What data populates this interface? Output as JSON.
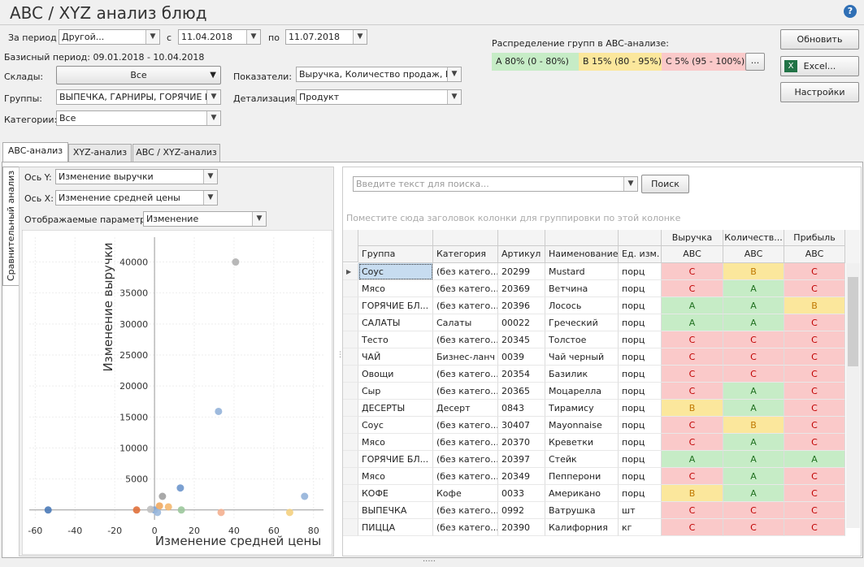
{
  "title": "ABC / XYZ анализ блюд",
  "filters": {
    "period_label": "За период",
    "period": "Другой...",
    "from_label": "с",
    "from": "11.04.2018",
    "to_label": "по",
    "to": "11.07.2018",
    "base_period": "Базисный период: 09.01.2018 - 10.04.2018",
    "warehouses_label": "Склады:",
    "warehouses": "Все",
    "groups_label": "Группы:",
    "groups": "ВЫПЕЧКА, ГАРНИРЫ, ГОРЯЧИЕ Б...",
    "categories_label": "Категории:",
    "categories": "Все",
    "indicators_label": "Показатели:",
    "indicators": "Выручка, Количество продаж, П...",
    "detail_label": "Детализация:",
    "detail": "Продукт"
  },
  "distribution": {
    "label": "Распределение групп в ABC-анализе:",
    "a": "A 80% (0 - 80%)",
    "b": "B 15% (80 - 95%)",
    "c": "C 5% (95 - 100%)",
    "more": "..."
  },
  "buttons": {
    "refresh": "Обновить",
    "excel": "Excel...",
    "settings": "Настройки"
  },
  "tabs": [
    "ABC-анализ",
    "XYZ-анализ",
    "ABC / XYZ-анализ"
  ],
  "side_tab": "Сравнительный анализ",
  "chart_settings": {
    "y_label": "Ось Y:",
    "y": "Изменение выручки",
    "x_label": "Ось X:",
    "x": "Изменение средней цены",
    "params_label": "Отображаемые параметры:",
    "params": "Изменение"
  },
  "chart": {
    "type": "scatter",
    "x_label": "Изменение средней цены",
    "y_label": "Изменение выручки",
    "x": [
      40.8,
      32.2,
      13,
      4,
      75.5,
      -53.5,
      -9,
      0,
      2.5,
      7,
      13.5,
      33.5,
      68,
      1.5,
      -2
    ],
    "y": [
      40000,
      15900,
      3550,
      2200,
      2200,
      0,
      0,
      0,
      650,
      500,
      0,
      -400,
      -400,
      -400,
      100
    ],
    "colors": [
      "#b0b0b0",
      "#93b3d9",
      "#6d96cc",
      "#a0a0a0",
      "#93b3d9",
      "#4a7ab8",
      "#e0703a",
      "#7da4d4",
      "#f0a860",
      "#f4b870",
      "#9cc89c",
      "#f4b090",
      "#f4d080",
      "#9ab8dc",
      "#c0c0c0"
    ],
    "xlim": [
      -63,
      85
    ],
    "ylim": [
      -1600,
      44000
    ],
    "xticks": [
      -60,
      -40,
      -20,
      0,
      20,
      40,
      60,
      80
    ],
    "yticks": [
      5000,
      10000,
      15000,
      20000,
      25000,
      30000,
      35000,
      40000
    ]
  },
  "search": {
    "placeholder": "Введите текст для поиска...",
    "button": "Поиск",
    "group_hint": "Поместите сюда заголовок колонки для группировки по этой колонке"
  },
  "table": {
    "group_headers": [
      "Выручка",
      "Количеств...",
      "Прибыль"
    ],
    "columns": [
      "Группа",
      "Категория",
      "Артикул",
      "Наименование",
      "Ед. изм.",
      "ABC",
      "ABC",
      "ABC"
    ],
    "rows": [
      [
        "Соус",
        "(без катего...",
        "20299",
        "Mustard",
        "порц",
        "C",
        "B",
        "C"
      ],
      [
        "Мясо",
        "(без катего...",
        "20369",
        "Ветчина",
        "порц",
        "C",
        "A",
        "C"
      ],
      [
        "ГОРЯЧИЕ БЛ...",
        "(без катего...",
        "20396",
        "Лосось",
        "порц",
        "A",
        "A",
        "B"
      ],
      [
        "САЛАТЫ",
        "Салаты",
        "00022",
        "Греческий",
        "порц",
        "A",
        "A",
        "C"
      ],
      [
        "Тесто",
        "(без катего...",
        "20345",
        "Толстое",
        "порц",
        "C",
        "C",
        "C"
      ],
      [
        "ЧАЙ",
        "Бизнес-ланч",
        "0039",
        "Чай черный",
        "порц",
        "C",
        "C",
        "C"
      ],
      [
        "Овощи",
        "(без катего...",
        "20354",
        "Базилик",
        "порц",
        "C",
        "C",
        "C"
      ],
      [
        "Сыр",
        "(без катего...",
        "20365",
        "Моцарелла",
        "порц",
        "C",
        "A",
        "C"
      ],
      [
        "ДЕСЕРТЫ",
        "Десерт",
        "0843",
        "Тирамису",
        "порц",
        "B",
        "A",
        "C"
      ],
      [
        "Соус",
        "(без катего...",
        "30407",
        "Mayonnaise",
        "порц",
        "C",
        "B",
        "C"
      ],
      [
        "Мясо",
        "(без катего...",
        "20370",
        "Креветки",
        "порц",
        "C",
        "A",
        "C"
      ],
      [
        "ГОРЯЧИЕ БЛ...",
        "(без катего...",
        "20397",
        "Стейк",
        "порц",
        "A",
        "A",
        "A"
      ],
      [
        "Мясо",
        "(без катего...",
        "20349",
        "Пепперони",
        "порц",
        "C",
        "A",
        "C"
      ],
      [
        "КОФЕ",
        "Кофе",
        "0033",
        "Американо",
        "порц",
        "B",
        "A",
        "C"
      ],
      [
        "ВЫПЕЧКА",
        "(без катего...",
        "0992",
        "Ватрушка",
        "шт",
        "C",
        "C",
        "C"
      ],
      [
        "ПИЦЦА",
        "(без катего...",
        "20390",
        "Калифорния",
        "кг",
        "C",
        "C",
        "C"
      ]
    ]
  }
}
